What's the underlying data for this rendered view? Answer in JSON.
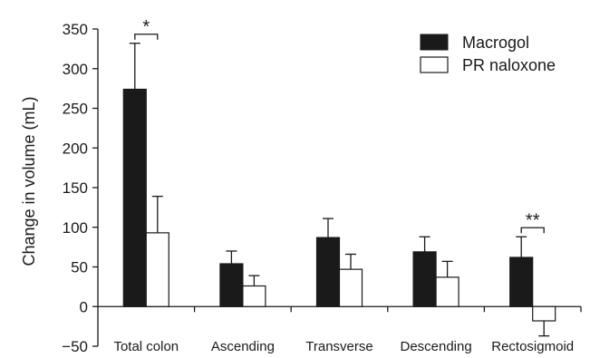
{
  "chart_data": {
    "type": "bar",
    "ylabel": "Change in volume (mL)",
    "ylim": [
      -50,
      350
    ],
    "yticks": [
      -50,
      0,
      50,
      100,
      150,
      200,
      250,
      300,
      350
    ],
    "ytick_labels": [
      "−50",
      "0",
      "50",
      "100",
      "150",
      "200",
      "250",
      "300",
      "350"
    ],
    "categories": [
      "Total colon",
      "Ascending",
      "Transverse",
      "Descending",
      "Rectosigmoid"
    ],
    "series": [
      {
        "name": "Macrogol",
        "color": "#1a1a1a",
        "values": [
          274,
          54,
          87,
          69,
          62
        ],
        "errors": [
          58,
          16,
          24,
          19,
          26
        ]
      },
      {
        "name": "PR naloxone",
        "color": "#ffffff",
        "values": [
          93,
          26,
          47,
          37,
          -18
        ],
        "errors": [
          46,
          13,
          19,
          20,
          19
        ]
      }
    ],
    "significance": [
      {
        "category": "Total colon",
        "label": "*"
      },
      {
        "category": "Rectosigmoid",
        "label": "**"
      }
    ],
    "legend_position": "top-right",
    "grid": false
  }
}
